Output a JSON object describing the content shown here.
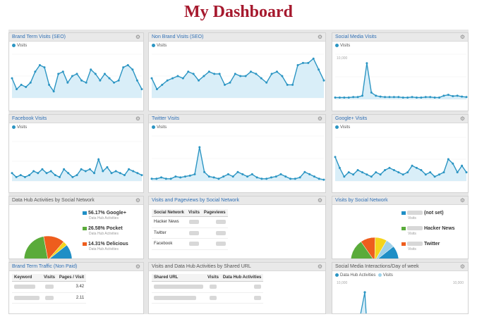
{
  "page": {
    "title": "My Dashboard"
  },
  "colors": {
    "title": "#a6192e",
    "line": "#2b95c3",
    "fill": "#d9eef8",
    "pie_blue": "#1f8fc6",
    "pie_green": "#5aab3a",
    "pie_orange": "#ee5d1d",
    "pie_yellow": "#f4d41c"
  },
  "gadgets": {
    "brand_term_visits": {
      "title": "Brand Term Visits (SEO)",
      "legend": "Visits",
      "icon": "gear-icon"
    },
    "non_brand_visits": {
      "title": "Non Brand Visits (SEO)",
      "legend": "Visits",
      "icon": "gear-icon"
    },
    "social_media_visits": {
      "title": "Social Media Visits",
      "legend": "Visits",
      "ytick": "10,000",
      "icon": "gear-icon"
    },
    "facebook_visits": {
      "title": "Facebook Visits",
      "legend": "Visits",
      "icon": "gear-icon"
    },
    "twitter_visits": {
      "title": "Twitter Visits",
      "legend": "Visits",
      "icon": "gear-icon"
    },
    "google_plus_visits": {
      "title": "Google+ Visits",
      "legend": "Visits",
      "icon": "gear-icon"
    },
    "data_hub_activities": {
      "title": "Data Hub Activities by Social Network",
      "items": [
        {
          "pct": "56.17%",
          "name": "Google+",
          "sub": "Data Hub Activities"
        },
        {
          "pct": "26.58%",
          "name": "Pocket",
          "sub": "Data Hub Activities"
        },
        {
          "pct": "14.31%",
          "name": "Delicious",
          "sub": "Data Hub Activities"
        }
      ]
    },
    "visits_pageviews": {
      "title": "Visits and Pageviews by Social Network",
      "headers": [
        "Social Network",
        "Visits",
        "Pageviews"
      ],
      "rows": [
        "Hacker News",
        "Twitter",
        "Facebook"
      ]
    },
    "visits_by_social": {
      "title": "Visits by Social Network",
      "items": [
        {
          "name": "(not set)",
          "sub": "Visits"
        },
        {
          "name": "Hacker News",
          "sub": "Visits"
        },
        {
          "name": "Twitter",
          "sub": "Visits"
        }
      ]
    },
    "brand_term_traffic": {
      "title": "Brand Term Traffic (Non Paid)",
      "headers": [
        "Keyword",
        "Visits",
        "Pages / Visit"
      ],
      "values": [
        "3.42",
        "2.11"
      ]
    },
    "visits_data_hub_url": {
      "title": "Visits and Data Hub Activities by Shared URL",
      "headers": [
        "Shared URL",
        "Visits",
        "Data Hub Activities"
      ]
    },
    "social_interactions": {
      "title": "Social Media Interactions/Day of week",
      "legend": [
        "Data Hub Activities",
        "Visits"
      ],
      "ytick": "10,000"
    }
  },
  "chart_data": [
    {
      "type": "area",
      "title": "Brand Term Visits (SEO)",
      "series": [
        {
          "name": "Visits",
          "values": [
            45,
            20,
            30,
            25,
            35,
            60,
            75,
            70,
            30,
            15,
            55,
            60,
            35,
            50,
            55,
            40,
            35,
            65,
            55,
            40,
            55,
            45,
            35,
            40,
            70,
            75,
            65,
            40,
            20
          ]
        }
      ]
    },
    {
      "type": "area",
      "title": "Non Brand Visits (SEO)",
      "series": [
        {
          "name": "Visits",
          "values": [
            45,
            20,
            30,
            40,
            45,
            50,
            45,
            60,
            55,
            40,
            50,
            60,
            55,
            55,
            30,
            35,
            55,
            50,
            50,
            60,
            55,
            45,
            35,
            55,
            60,
            50,
            30,
            30,
            75,
            80,
            80,
            90,
            65,
            40
          ]
        }
      ]
    },
    {
      "type": "area",
      "title": "Social Media Visits",
      "series": [
        {
          "name": "Visits",
          "values": [
            4,
            4,
            4,
            4,
            5,
            5,
            8,
            80,
            15,
            8,
            6,
            5,
            5,
            5,
            5,
            4,
            4,
            5,
            4,
            4,
            5,
            5,
            4,
            4,
            8,
            10,
            7,
            8,
            6,
            5
          ]
        }
      ]
    },
    {
      "type": "area",
      "title": "Facebook Visits",
      "series": [
        {
          "name": "Visits",
          "values": [
            20,
            10,
            15,
            10,
            15,
            25,
            20,
            30,
            20,
            25,
            15,
            10,
            30,
            20,
            10,
            15,
            30,
            25,
            30,
            20,
            55,
            25,
            35,
            20,
            25,
            20,
            15,
            30,
            25,
            20,
            15
          ]
        }
      ]
    },
    {
      "type": "area",
      "title": "Twitter Visits",
      "series": [
        {
          "name": "Visits",
          "values": [
            5,
            5,
            8,
            5,
            5,
            10,
            8,
            10,
            12,
            15,
            75,
            20,
            10,
            8,
            5,
            10,
            15,
            10,
            20,
            15,
            10,
            15,
            8,
            5,
            5,
            8,
            10,
            15,
            10,
            5,
            5,
            8,
            20,
            15,
            10,
            5,
            3
          ]
        }
      ]
    },
    {
      "type": "area",
      "title": "Google+ Visits",
      "series": [
        {
          "name": "Visits",
          "values": [
            55,
            30,
            10,
            20,
            15,
            25,
            20,
            15,
            10,
            20,
            15,
            25,
            30,
            25,
            20,
            15,
            20,
            35,
            30,
            25,
            15,
            20,
            10,
            15,
            20,
            50,
            40,
            20,
            35,
            20
          ]
        }
      ]
    },
    {
      "type": "pie",
      "title": "Data Hub Activities by Social Network",
      "values": [
        56.17,
        26.58,
        14.31,
        2.94
      ]
    },
    {
      "type": "pie",
      "title": "Visits by Social Network",
      "values": [
        52,
        24,
        10,
        8,
        6
      ]
    }
  ]
}
